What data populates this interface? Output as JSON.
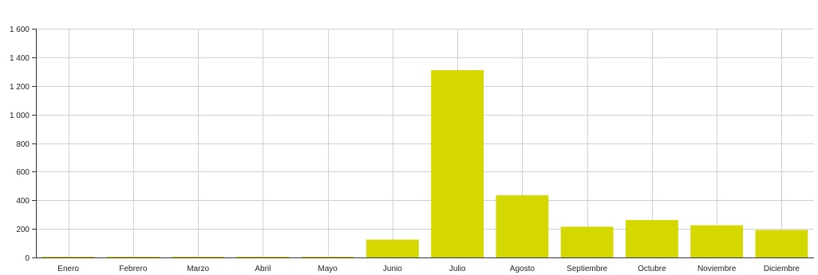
{
  "chart_data": {
    "type": "bar",
    "categories": [
      "Enero",
      "Febrero",
      "Marzo",
      "Abril",
      "Mayo",
      "Junio",
      "Julio",
      "Agosto",
      "Septiembre",
      "Octubre",
      "Noviembre",
      "Diciembre"
    ],
    "values": [
      0,
      0,
      0,
      0,
      0,
      125,
      1310,
      435,
      215,
      262,
      225,
      192
    ],
    "ylim": [
      0,
      1600
    ],
    "yticks": [
      0,
      200,
      400,
      600,
      800,
      1000,
      1200,
      1400,
      1600
    ],
    "ytick_labels": [
      "0",
      "200",
      "400",
      "600",
      "800",
      "1 000",
      "1 200",
      "1 400",
      "1 600"
    ],
    "grid": true,
    "bar_color": "#d4d800",
    "title": "",
    "xlabel": "",
    "ylabel": ""
  }
}
